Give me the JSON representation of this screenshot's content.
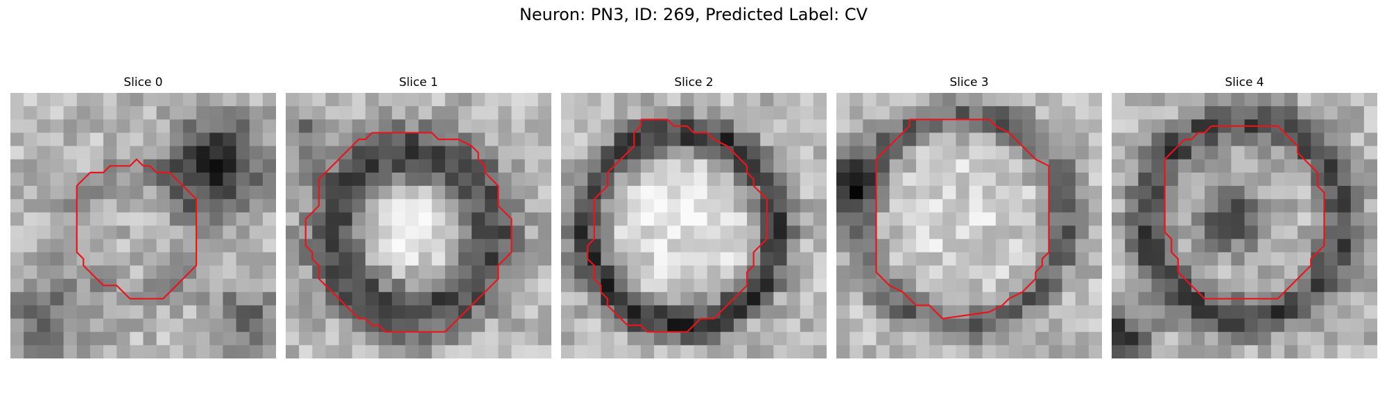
{
  "figure": {
    "title": "Neuron: PN3, ID: 269, Predicted Label: CV"
  },
  "colors": {
    "contour": "#e8151a"
  },
  "panels": [
    {
      "title": "Slice 0",
      "contour": [
        [
          10,
          5.5
        ],
        [
          10.5,
          5.5
        ],
        [
          11,
          6
        ],
        [
          12,
          6
        ],
        [
          12.5,
          6.5
        ],
        [
          13,
          7
        ],
        [
          13.5,
          7.5
        ],
        [
          14,
          8
        ],
        [
          14,
          13
        ],
        [
          13.5,
          13.5
        ],
        [
          13,
          14
        ],
        [
          12.5,
          14.5
        ],
        [
          12,
          15
        ],
        [
          11.5,
          15.5
        ],
        [
          9,
          15.5
        ],
        [
          8.5,
          15
        ],
        [
          8,
          14.5
        ],
        [
          7,
          14.5
        ],
        [
          6.5,
          14
        ],
        [
          6,
          13.5
        ],
        [
          5.5,
          13
        ],
        [
          5.5,
          12.5
        ],
        [
          5,
          12
        ],
        [
          5,
          7
        ],
        [
          5.5,
          6.5
        ],
        [
          6,
          6
        ],
        [
          7,
          6
        ],
        [
          7.5,
          5.5
        ],
        [
          9,
          5.5
        ],
        [
          9.5,
          5
        ]
      ]
    },
    {
      "title": "Slice 1",
      "contour": [
        [
          6.5,
          3
        ],
        [
          11,
          3
        ],
        [
          11.5,
          3.5
        ],
        [
          13,
          3.5
        ],
        [
          14,
          4
        ],
        [
          14.5,
          4.5
        ],
        [
          14.5,
          5
        ],
        [
          15,
          5.5
        ],
        [
          15,
          6
        ],
        [
          15.5,
          6.5
        ],
        [
          16,
          7
        ],
        [
          16,
          8.5
        ],
        [
          16.5,
          9
        ],
        [
          17,
          9.5
        ],
        [
          17,
          12
        ],
        [
          16.5,
          12.5
        ],
        [
          16,
          13
        ],
        [
          16,
          14
        ],
        [
          15.5,
          14.5
        ],
        [
          15,
          15
        ],
        [
          14.5,
          15.5
        ],
        [
          14,
          16
        ],
        [
          13.5,
          16.5
        ],
        [
          13,
          17
        ],
        [
          12.5,
          17.5
        ],
        [
          12,
          18
        ],
        [
          7.5,
          18
        ],
        [
          7,
          17.5
        ],
        [
          6.5,
          17.5
        ],
        [
          6,
          17
        ],
        [
          5.5,
          17
        ],
        [
          5,
          16.5
        ],
        [
          4.5,
          16
        ],
        [
          4,
          15.5
        ],
        [
          3.5,
          15
        ],
        [
          3,
          14.5
        ],
        [
          2.5,
          14
        ],
        [
          2.5,
          13
        ],
        [
          2,
          12.5
        ],
        [
          2,
          12
        ],
        [
          1.5,
          11.5
        ],
        [
          1.5,
          9.5
        ],
        [
          2,
          9
        ],
        [
          2.5,
          8.5
        ],
        [
          2.5,
          6.5
        ],
        [
          3,
          6
        ],
        [
          3.5,
          5.5
        ],
        [
          4,
          5
        ],
        [
          4.5,
          4.5
        ],
        [
          5,
          4
        ],
        [
          5.5,
          3.5
        ],
        [
          6,
          3.5
        ]
      ]
    },
    {
      "title": "Slice 2",
      "contour": [
        [
          6,
          2
        ],
        [
          8,
          2
        ],
        [
          8.5,
          2.5
        ],
        [
          9.5,
          2.5
        ],
        [
          10,
          3
        ],
        [
          11,
          3
        ],
        [
          11.5,
          3.5
        ],
        [
          12.5,
          4
        ],
        [
          13,
          4.5
        ],
        [
          13.5,
          5
        ],
        [
          14,
          5.5
        ],
        [
          14,
          6
        ],
        [
          14.5,
          6.5
        ],
        [
          14.5,
          7
        ],
        [
          15,
          7.5
        ],
        [
          15.5,
          8
        ],
        [
          15.5,
          11
        ],
        [
          15,
          11.5
        ],
        [
          14.5,
          12
        ],
        [
          14.5,
          13
        ],
        [
          14,
          13.5
        ],
        [
          14,
          14.5
        ],
        [
          13.5,
          15
        ],
        [
          13,
          15.5
        ],
        [
          12.5,
          16
        ],
        [
          12,
          16.5
        ],
        [
          11.5,
          17
        ],
        [
          10.5,
          17
        ],
        [
          10,
          17.5
        ],
        [
          9.5,
          18
        ],
        [
          6.5,
          18
        ],
        [
          6,
          17.5
        ],
        [
          5,
          17.5
        ],
        [
          4.5,
          17
        ],
        [
          4,
          16.5
        ],
        [
          3.5,
          16
        ],
        [
          3.5,
          15.5
        ],
        [
          3,
          15
        ],
        [
          3,
          14.5
        ],
        [
          2.5,
          14
        ],
        [
          2.5,
          13
        ],
        [
          2,
          12.5
        ],
        [
          2,
          11.5
        ],
        [
          2.5,
          11
        ],
        [
          2.5,
          10
        ],
        [
          2.5,
          9
        ],
        [
          2.5,
          8
        ],
        [
          3,
          7.5
        ],
        [
          3.5,
          7
        ],
        [
          3.5,
          6
        ],
        [
          4,
          5.5
        ],
        [
          4.5,
          5
        ],
        [
          5,
          4.5
        ],
        [
          5.5,
          4
        ],
        [
          5.5,
          3
        ],
        [
          6,
          2.5
        ]
      ]
    },
    {
      "title": "Slice 3",
      "contour": [
        [
          5.5,
          2
        ],
        [
          11.5,
          2
        ],
        [
          12,
          2.5
        ],
        [
          13,
          3
        ],
        [
          13.5,
          3.5
        ],
        [
          14,
          4
        ],
        [
          14.5,
          4.5
        ],
        [
          15,
          5
        ],
        [
          16,
          5.5
        ],
        [
          16,
          12
        ],
        [
          15.5,
          12.5
        ],
        [
          15.5,
          13
        ],
        [
          15,
          13.5
        ],
        [
          15,
          14
        ],
        [
          14.5,
          14.5
        ],
        [
          14,
          15
        ],
        [
          13,
          15.5
        ],
        [
          12.5,
          16
        ],
        [
          11.5,
          16.5
        ],
        [
          8,
          17
        ],
        [
          7.5,
          16.5
        ],
        [
          7,
          16
        ],
        [
          6,
          16
        ],
        [
          5.5,
          15.5
        ],
        [
          5,
          15
        ],
        [
          4,
          14.5
        ],
        [
          3.5,
          14
        ],
        [
          3,
          13.5
        ],
        [
          3,
          5
        ],
        [
          3.5,
          4.5
        ],
        [
          4,
          4
        ],
        [
          4.5,
          3.5
        ],
        [
          5,
          3
        ],
        [
          5.5,
          2.5
        ]
      ]
    },
    {
      "title": "Slice 4",
      "contour": [
        [
          7.5,
          2.5
        ],
        [
          12.5,
          2.5
        ],
        [
          13,
          3
        ],
        [
          13.5,
          3.5
        ],
        [
          14,
          4
        ],
        [
          14,
          4.5
        ],
        [
          14.5,
          5
        ],
        [
          15,
          5.5
        ],
        [
          15.5,
          6
        ],
        [
          15.5,
          7
        ],
        [
          16,
          7.5
        ],
        [
          16,
          11.5
        ],
        [
          15.5,
          12
        ],
        [
          15,
          12.5
        ],
        [
          15,
          13
        ],
        [
          14.5,
          13.5
        ],
        [
          14,
          14
        ],
        [
          13.5,
          14.5
        ],
        [
          13,
          15
        ],
        [
          12.5,
          15.5
        ],
        [
          7,
          15.5
        ],
        [
          6.5,
          15
        ],
        [
          6,
          14.5
        ],
        [
          5.5,
          14
        ],
        [
          5,
          13.5
        ],
        [
          5,
          12.5
        ],
        [
          4.5,
          12
        ],
        [
          4.5,
          11
        ],
        [
          4,
          10.5
        ],
        [
          4,
          5
        ],
        [
          4.5,
          4.5
        ],
        [
          5,
          4
        ],
        [
          5.5,
          3.5
        ],
        [
          6,
          3.5
        ],
        [
          6.5,
          3
        ],
        [
          7,
          3
        ]
      ]
    }
  ]
}
